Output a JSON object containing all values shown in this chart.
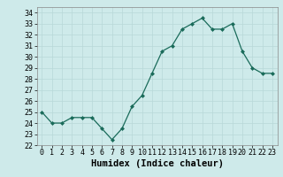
{
  "x": [
    0,
    1,
    2,
    3,
    4,
    5,
    6,
    7,
    8,
    9,
    10,
    11,
    12,
    13,
    14,
    15,
    16,
    17,
    18,
    19,
    20,
    21,
    22,
    23
  ],
  "y": [
    25.0,
    24.0,
    24.0,
    24.5,
    24.5,
    24.5,
    23.5,
    22.5,
    23.5,
    25.5,
    26.5,
    28.5,
    30.5,
    31.0,
    32.5,
    33.0,
    33.5,
    32.5,
    32.5,
    33.0,
    30.5,
    29.0,
    28.5,
    28.5
  ],
  "xlabel": "Humidex (Indice chaleur)",
  "ylim": [
    22,
    34.5
  ],
  "yticks": [
    22,
    23,
    24,
    25,
    26,
    27,
    28,
    29,
    30,
    31,
    32,
    33,
    34
  ],
  "line_color": "#1a6b5a",
  "marker": "D",
  "marker_size": 2.0,
  "bg_color": "#ceeaea",
  "grid_color": "#b8d8d8",
  "xlabel_fontsize": 7.5,
  "tick_fontsize": 6.0
}
